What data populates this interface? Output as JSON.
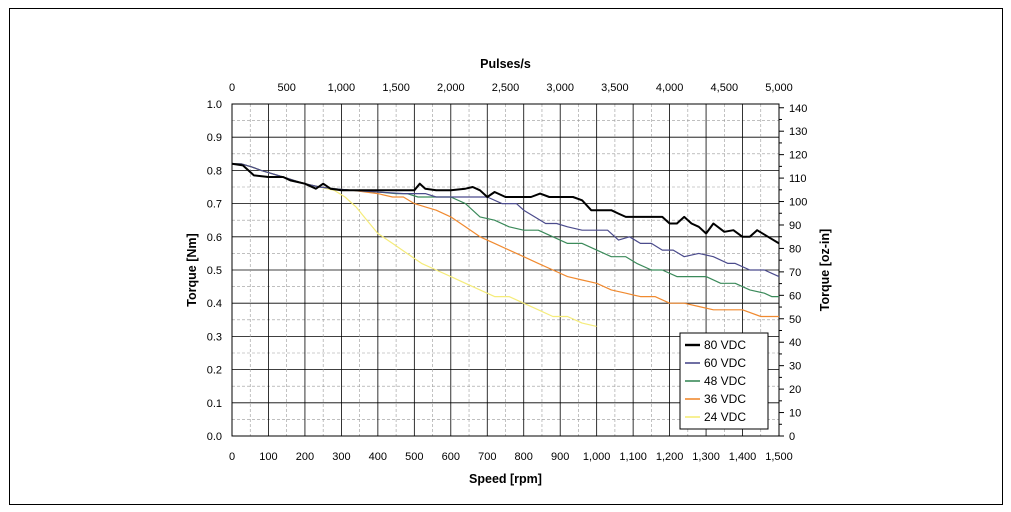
{
  "chart_data": {
    "type": "line",
    "xlabel": "Speed [rpm]",
    "ylabel": "Torque [Nm]",
    "x2label": "Pulses/s",
    "y2label": "Torque [oz-in]",
    "xlim": [
      0,
      1500
    ],
    "ylim": [
      0,
      1.0
    ],
    "x2lim": [
      0,
      5000
    ],
    "y2lim": [
      0,
      141.6
    ],
    "grid": true,
    "legend_position": "bottom-right",
    "x_ticks": [
      "0",
      "100",
      "200",
      "300",
      "400",
      "500",
      "600",
      "700",
      "800",
      "900",
      "1,000",
      "1,100",
      "1,200",
      "1,300",
      "1,400",
      "1,500"
    ],
    "y_ticks": [
      "0.0",
      "0.1",
      "0.2",
      "0.3",
      "0.4",
      "0.5",
      "0.6",
      "0.7",
      "0.8",
      "0.9",
      "1.0"
    ],
    "x2_ticks": [
      "0",
      "500",
      "1,000",
      "1,500",
      "2,000",
      "2,500",
      "3,000",
      "3,500",
      "4,000",
      "4,500",
      "5,000"
    ],
    "y2_ticks": [
      "0",
      "10",
      "20",
      "30",
      "40",
      "50",
      "60",
      "70",
      "80",
      "90",
      "100",
      "110",
      "120",
      "130",
      "140"
    ],
    "series": [
      {
        "name": "80 VDC",
        "color": "#000000",
        "width": 2,
        "x": [
          0,
          30,
          60,
          100,
          140,
          160,
          200,
          230,
          250,
          270,
          300,
          350,
          400,
          450,
          500,
          515,
          530,
          560,
          600,
          640,
          660,
          680,
          700,
          720,
          750,
          790,
          820,
          845,
          870,
          900,
          935,
          960,
          985,
          1010,
          1040,
          1060,
          1080,
          1120,
          1160,
          1180,
          1200,
          1220,
          1240,
          1260,
          1280,
          1300,
          1320,
          1350,
          1375,
          1400,
          1420,
          1440,
          1470,
          1500
        ],
        "y": [
          0.82,
          0.815,
          0.785,
          0.78,
          0.78,
          0.77,
          0.76,
          0.745,
          0.76,
          0.745,
          0.74,
          0.74,
          0.74,
          0.74,
          0.74,
          0.76,
          0.745,
          0.74,
          0.74,
          0.745,
          0.75,
          0.74,
          0.72,
          0.735,
          0.72,
          0.72,
          0.72,
          0.73,
          0.72,
          0.72,
          0.72,
          0.71,
          0.68,
          0.68,
          0.68,
          0.67,
          0.66,
          0.66,
          0.66,
          0.66,
          0.64,
          0.64,
          0.66,
          0.64,
          0.63,
          0.61,
          0.64,
          0.615,
          0.62,
          0.6,
          0.6,
          0.62,
          0.6,
          0.58
        ]
      },
      {
        "name": "60 VDC",
        "color": "#4b4b8c",
        "width": 1.2,
        "x": [
          0,
          25,
          55,
          80,
          110,
          140,
          170,
          200,
          240,
          280,
          330,
          400,
          470,
          530,
          560,
          590,
          620,
          660,
          700,
          740,
          780,
          800,
          830,
          860,
          890,
          920,
          960,
          1000,
          1030,
          1060,
          1090,
          1120,
          1150,
          1180,
          1210,
          1240,
          1280,
          1320,
          1360,
          1380,
          1420,
          1460,
          1480,
          1500
        ],
        "y": [
          0.82,
          0.82,
          0.81,
          0.8,
          0.79,
          0.78,
          0.77,
          0.76,
          0.75,
          0.745,
          0.74,
          0.735,
          0.73,
          0.73,
          0.72,
          0.72,
          0.72,
          0.72,
          0.72,
          0.7,
          0.7,
          0.68,
          0.66,
          0.64,
          0.64,
          0.63,
          0.62,
          0.62,
          0.62,
          0.59,
          0.6,
          0.58,
          0.58,
          0.56,
          0.56,
          0.54,
          0.55,
          0.54,
          0.52,
          0.52,
          0.5,
          0.5,
          0.49,
          0.48
        ]
      },
      {
        "name": "48 VDC",
        "color": "#3b8a5a",
        "width": 1.2,
        "x": [
          0,
          25,
          55,
          80,
          110,
          140,
          170,
          200,
          240,
          280,
          330,
          400,
          450,
          480,
          510,
          540,
          570,
          600,
          640,
          680,
          720,
          760,
          800,
          840,
          880,
          920,
          960,
          1000,
          1040,
          1080,
          1110,
          1150,
          1180,
          1220,
          1260,
          1300,
          1340,
          1380,
          1420,
          1460,
          1480,
          1500
        ],
        "y": [
          0.82,
          0.82,
          0.81,
          0.8,
          0.79,
          0.78,
          0.77,
          0.76,
          0.75,
          0.745,
          0.74,
          0.735,
          0.73,
          0.73,
          0.72,
          0.72,
          0.72,
          0.72,
          0.7,
          0.66,
          0.65,
          0.63,
          0.62,
          0.62,
          0.6,
          0.58,
          0.58,
          0.56,
          0.54,
          0.54,
          0.52,
          0.5,
          0.5,
          0.48,
          0.48,
          0.48,
          0.46,
          0.46,
          0.44,
          0.43,
          0.42,
          0.42
        ]
      },
      {
        "name": "36 VDC",
        "color": "#f08a30",
        "width": 1.2,
        "x": [
          0,
          25,
          55,
          80,
          110,
          140,
          170,
          200,
          240,
          280,
          330,
          400,
          440,
          470,
          500,
          530,
          560,
          600,
          640,
          680,
          720,
          760,
          800,
          840,
          880,
          920,
          960,
          1000,
          1040,
          1080,
          1120,
          1160,
          1200,
          1240,
          1280,
          1320,
          1360,
          1400,
          1450,
          1500
        ],
        "y": [
          0.82,
          0.82,
          0.81,
          0.8,
          0.79,
          0.78,
          0.77,
          0.76,
          0.75,
          0.745,
          0.74,
          0.73,
          0.72,
          0.72,
          0.7,
          0.69,
          0.68,
          0.66,
          0.63,
          0.6,
          0.58,
          0.56,
          0.54,
          0.52,
          0.5,
          0.48,
          0.47,
          0.46,
          0.44,
          0.43,
          0.42,
          0.42,
          0.4,
          0.4,
          0.39,
          0.38,
          0.38,
          0.38,
          0.36,
          0.36
        ]
      },
      {
        "name": "24 VDC",
        "color": "#f5ec7a",
        "width": 1.2,
        "x": [
          0,
          25,
          55,
          80,
          110,
          140,
          170,
          200,
          240,
          280,
          310,
          340,
          370,
          400,
          440,
          480,
          520,
          560,
          600,
          640,
          680,
          720,
          760,
          800,
          840,
          880,
          920,
          960,
          1000
        ],
        "y": [
          0.82,
          0.82,
          0.81,
          0.8,
          0.79,
          0.78,
          0.77,
          0.76,
          0.75,
          0.74,
          0.72,
          0.69,
          0.65,
          0.61,
          0.58,
          0.55,
          0.52,
          0.5,
          0.48,
          0.46,
          0.44,
          0.42,
          0.42,
          0.4,
          0.38,
          0.36,
          0.36,
          0.34,
          0.33
        ]
      }
    ]
  }
}
